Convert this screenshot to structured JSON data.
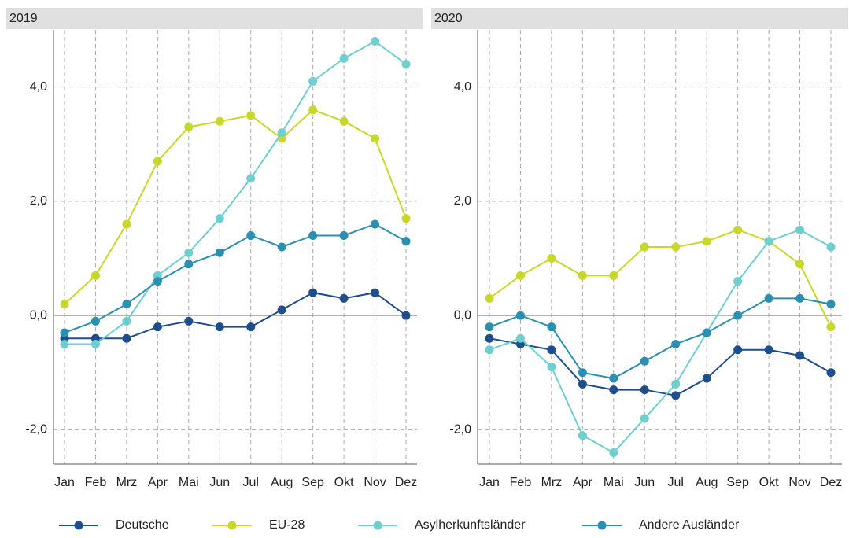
{
  "chart_data": [
    {
      "type": "line",
      "title": "2019",
      "categories": [
        "Jan",
        "Feb",
        "Mrz",
        "Apr",
        "Mai",
        "Jun",
        "Jul",
        "Aug",
        "Sep",
        "Okt",
        "Nov",
        "Dez"
      ],
      "ylim": [
        -2.6,
        5.0
      ],
      "yticks": [
        {
          "value": -2,
          "label": "-2,0"
        },
        {
          "value": 0,
          "label": "0,0"
        },
        {
          "value": 2,
          "label": "2,0"
        },
        {
          "value": 4,
          "label": "4,0"
        }
      ],
      "grid": true,
      "series": [
        {
          "name": "Deutsche",
          "color": "#1f4e8c",
          "values": [
            -0.4,
            -0.4,
            -0.4,
            -0.2,
            -0.1,
            -0.2,
            -0.2,
            0.1,
            0.4,
            0.3,
            0.4,
            0.0
          ]
        },
        {
          "name": "EU-28",
          "color": "#c8d82a",
          "values": [
            0.2,
            0.7,
            1.6,
            2.7,
            3.3,
            3.4,
            3.5,
            3.1,
            3.6,
            3.4,
            3.1,
            1.7
          ]
        },
        {
          "name": "Asylherkunftsländer",
          "color": "#6fcfcf",
          "values": [
            -0.5,
            -0.5,
            -0.1,
            0.7,
            1.1,
            1.7,
            2.4,
            3.2,
            4.1,
            4.5,
            4.8,
            4.4
          ]
        },
        {
          "name": "Andere Ausländer",
          "color": "#2a8fb0",
          "values": [
            -0.3,
            -0.1,
            0.2,
            0.6,
            0.9,
            1.1,
            1.4,
            1.2,
            1.4,
            1.4,
            1.6,
            1.3
          ]
        }
      ]
    },
    {
      "type": "line",
      "title": "2020",
      "categories": [
        "Jan",
        "Feb",
        "Mrz",
        "Apr",
        "Mai",
        "Jun",
        "Jul",
        "Aug",
        "Sep",
        "Okt",
        "Nov",
        "Dez"
      ],
      "ylim": [
        -2.6,
        5.0
      ],
      "yticks": [
        {
          "value": -2,
          "label": "-2,0"
        },
        {
          "value": 0,
          "label": "0,0"
        },
        {
          "value": 2,
          "label": "2,0"
        },
        {
          "value": 4,
          "label": "4,0"
        }
      ],
      "grid": true,
      "series": [
        {
          "color": "#1f4e8c",
          "values": [
            -0.4,
            -0.5,
            -0.6,
            -1.2,
            -1.3,
            -1.3,
            -1.4,
            -1.1,
            -0.6,
            -0.6,
            -0.7,
            -1.0
          ]
        },
        {
          "color": "#c8d82a",
          "values": [
            0.3,
            0.7,
            1.0,
            0.7,
            0.7,
            1.2,
            1.2,
            1.3,
            1.5,
            1.3,
            0.9,
            -0.2
          ]
        },
        {
          "color": "#6fcfcf",
          "values": [
            -0.6,
            -0.4,
            -0.9,
            -2.1,
            -2.4,
            -1.8,
            -1.2,
            -0.3,
            0.6,
            1.3,
            1.5,
            1.2
          ]
        },
        {
          "color": "#2a8fb0",
          "values": [
            -0.2,
            0.0,
            -0.2,
            -1.0,
            -1.1,
            -0.8,
            -0.5,
            -0.3,
            0.0,
            0.3,
            0.3,
            0.2
          ]
        }
      ]
    }
  ]
}
